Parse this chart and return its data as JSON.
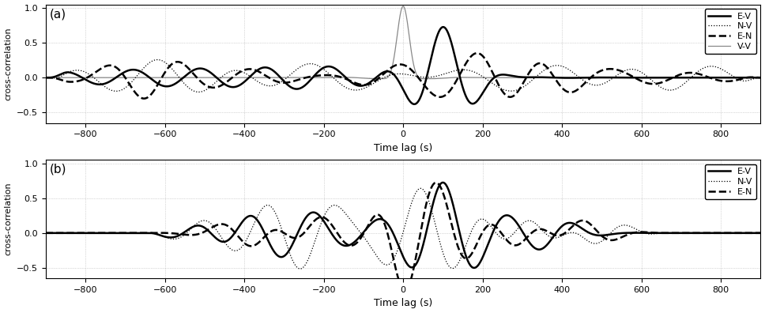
{
  "panel_a": {
    "label": "(a)",
    "xlim": [
      -900,
      900
    ],
    "ylim": [
      -0.65,
      1.05
    ],
    "yticks": [
      -0.5,
      0,
      0.5,
      1
    ],
    "xticks": [
      -800,
      -600,
      -400,
      -200,
      0,
      200,
      400,
      600,
      800
    ],
    "xlabel": "Time lag (s)",
    "ylabel": "cross-correlation",
    "legend": [
      "E-V",
      "N-V",
      "E-N",
      "V-V"
    ]
  },
  "panel_b": {
    "label": "(b)",
    "xlim": [
      -900,
      900
    ],
    "ylim": [
      -0.65,
      1.05
    ],
    "yticks": [
      -0.5,
      0,
      0.5,
      1
    ],
    "xticks": [
      -800,
      -600,
      -400,
      -200,
      0,
      200,
      400,
      600,
      800
    ],
    "xlabel": "Time lag (s)",
    "ylabel": "cross-correlation",
    "legend": [
      "E-V",
      "N-V",
      "E-N"
    ]
  }
}
